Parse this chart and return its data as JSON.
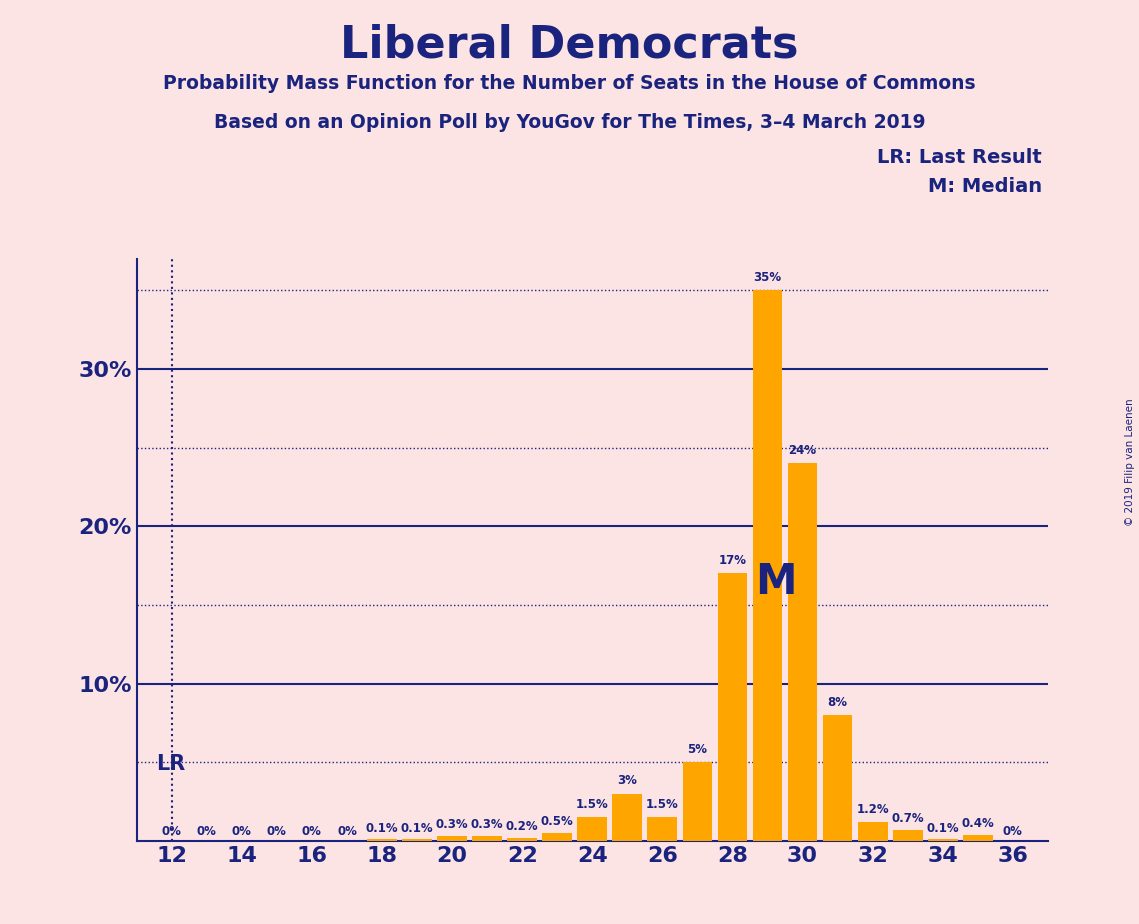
{
  "title": "Liberal Democrats",
  "subtitle1": "Probability Mass Function for the Number of Seats in the House of Commons",
  "subtitle2": "Based on an Opinion Poll by YouGov for The Times, 3–4 March 2019",
  "copyright": "© 2019 Filip van Laenen",
  "background_color": "#fce4e4",
  "bar_color": "#FFA500",
  "axis_color": "#1a237e",
  "text_color": "#1a237e",
  "lr_x": 12,
  "lr_label": "LR",
  "median_x": 29,
  "median_label": "M",
  "legend_lr": "LR: Last Result",
  "legend_m": "M: Median",
  "seats": [
    12,
    13,
    14,
    15,
    16,
    17,
    18,
    19,
    20,
    21,
    22,
    23,
    24,
    25,
    26,
    27,
    28,
    29,
    30,
    31,
    32,
    33,
    34,
    35,
    36
  ],
  "probabilities": [
    0.0,
    0.0,
    0.0,
    0.0,
    0.0,
    0.0,
    0.1,
    0.1,
    0.3,
    0.3,
    0.2,
    0.5,
    1.5,
    3.0,
    1.5,
    5.0,
    17.0,
    35.0,
    24.0,
    8.0,
    1.2,
    0.7,
    0.1,
    0.4,
    0.0
  ],
  "bar_labels": [
    "0%",
    "0%",
    "0%",
    "0%",
    "0%",
    "0%",
    "0.1%",
    "0.1%",
    "0.3%",
    "0.3%",
    "0.2%",
    "0.5%",
    "1.5%",
    "3%",
    "1.5%",
    "5%",
    "17%",
    "35%",
    "24%",
    "8%",
    "1.2%",
    "0.7%",
    "0.1%",
    "0.4%",
    "0%"
  ],
  "ylim": [
    0,
    37
  ],
  "xlim": [
    11,
    37
  ],
  "xticks": [
    12,
    14,
    16,
    18,
    20,
    22,
    24,
    26,
    28,
    30,
    32,
    34,
    36
  ],
  "solid_lines": [
    10.0,
    20.0,
    30.0
  ],
  "dotted_lines": [
    5.0,
    15.0,
    25.0,
    35.0
  ]
}
